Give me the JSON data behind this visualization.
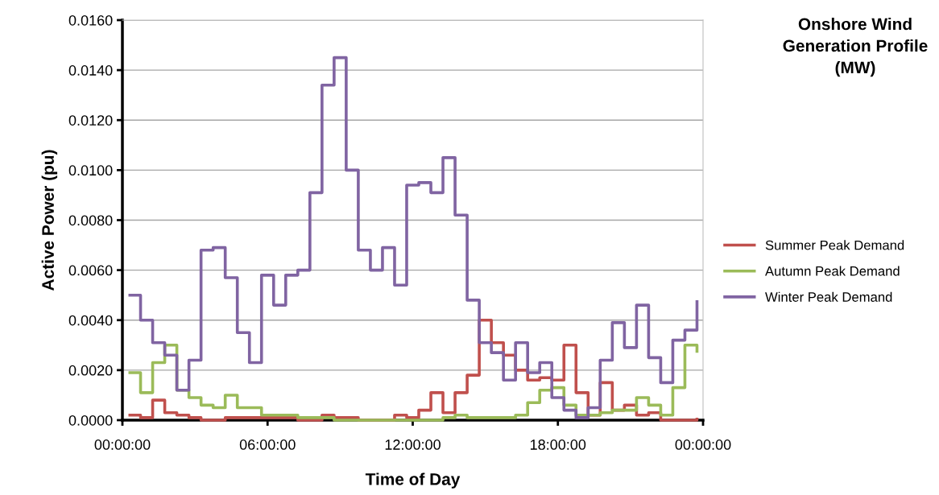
{
  "chart_data": {
    "type": "step",
    "title": "Onshore Wind Generation Profile (MW)",
    "xlabel": "Time of Day",
    "ylabel": "Active Power (pu)",
    "x": [
      "2000-01-01T00:15",
      "2000-01-01T00:45",
      "2000-01-01T01:15",
      "2000-01-01T01:45",
      "2000-01-01T02:15",
      "2000-01-01T02:45",
      "2000-01-01T03:15",
      "2000-01-01T03:45",
      "2000-01-01T04:15",
      "2000-01-01T04:45",
      "2000-01-01T05:15",
      "2000-01-01T05:45",
      "2000-01-01T06:15",
      "2000-01-01T06:45",
      "2000-01-01T07:15",
      "2000-01-01T07:45",
      "2000-01-01T08:15",
      "2000-01-01T08:45",
      "2000-01-01T09:15",
      "2000-01-01T09:45",
      "2000-01-01T10:15",
      "2000-01-01T10:45",
      "2000-01-01T11:15",
      "2000-01-01T11:45",
      "2000-01-01T12:15",
      "2000-01-01T12:45",
      "2000-01-01T13:15",
      "2000-01-01T13:45",
      "2000-01-01T14:15",
      "2000-01-01T14:45",
      "2000-01-01T15:15",
      "2000-01-01T15:45",
      "2000-01-01T16:15",
      "2000-01-01T16:45",
      "2000-01-01T17:15",
      "2000-01-01T17:45",
      "2000-01-01T18:15",
      "2000-01-01T18:45",
      "2000-01-01T19:15",
      "2000-01-01T19:45",
      "2000-01-01T20:15",
      "2000-01-01T20:45",
      "2000-01-01T21:15",
      "2000-01-01T21:45",
      "2000-01-01T22:15",
      "2000-01-01T22:45",
      "2000-01-01T23:15",
      "2000-01-01T23:45"
    ],
    "series": [
      {
        "name": "Summer Peak Demand",
        "color": "#c0504d",
        "values": [
          0.0002,
          0.0001,
          0.0008,
          0.0003,
          0.0002,
          0.0001,
          0.0,
          0.0,
          0.0001,
          0.0001,
          0.0001,
          0.0001,
          0.0001,
          0.0001,
          0.0,
          0.0,
          0.0002,
          0.0001,
          0.0001,
          0.0,
          0.0,
          0.0,
          0.0002,
          0.0001,
          0.0004,
          0.0011,
          0.0003,
          0.0011,
          0.0018,
          0.004,
          0.0031,
          0.0026,
          0.002,
          0.0016,
          0.0017,
          0.0016,
          0.003,
          0.0011,
          0.0002,
          0.0015,
          0.0004,
          0.0006,
          0.0002,
          0.0003,
          0.0,
          0.0,
          0.0,
          0.0001
        ]
      },
      {
        "name": "Autumn Peak Demand",
        "color": "#9bbb59",
        "values": [
          0.0019,
          0.0011,
          0.0023,
          0.003,
          0.0012,
          0.0009,
          0.0006,
          0.0005,
          0.001,
          0.0005,
          0.0005,
          0.0002,
          0.0002,
          0.0002,
          0.0001,
          0.0001,
          0.0001,
          0.0,
          0.0,
          0.0,
          0.0,
          0.0,
          0.0,
          0.0,
          0.0,
          0.0,
          0.0001,
          0.0002,
          0.0001,
          0.0001,
          0.0001,
          0.0001,
          0.0002,
          0.0007,
          0.0012,
          0.0013,
          0.0006,
          0.0002,
          0.0002,
          0.0003,
          0.0004,
          0.0004,
          0.0009,
          0.0006,
          0.0002,
          0.0013,
          0.003,
          0.0027
        ]
      },
      {
        "name": "Winter Peak Demand",
        "color": "#8064a2",
        "values": [
          0.005,
          0.004,
          0.0031,
          0.0026,
          0.0012,
          0.0024,
          0.0068,
          0.0069,
          0.0057,
          0.0035,
          0.0023,
          0.0058,
          0.0046,
          0.0058,
          0.006,
          0.0091,
          0.0134,
          0.0145,
          0.01,
          0.0068,
          0.006,
          0.0069,
          0.0054,
          0.0094,
          0.0095,
          0.0091,
          0.0105,
          0.0082,
          0.0048,
          0.0031,
          0.0027,
          0.0016,
          0.0031,
          0.0019,
          0.0023,
          0.0009,
          0.0004,
          0.0001,
          0.0005,
          0.0024,
          0.0039,
          0.0029,
          0.0046,
          0.0025,
          0.0015,
          0.0032,
          0.0036,
          0.0048
        ]
      }
    ],
    "xlim": [
      "2000-01-01T00:00",
      "2000-01-02T00:00"
    ],
    "xticks": [
      {
        "value": "2000-01-01T00:00",
        "label": "00:00:00"
      },
      {
        "value": "2000-01-01T06:00",
        "label": "06:00:00"
      },
      {
        "value": "2000-01-01T12:00",
        "label": "12:00:00"
      },
      {
        "value": "2000-01-01T18:00",
        "label": "18:00:00"
      },
      {
        "value": "2000-01-02T00:00",
        "label": "00:00:00"
      }
    ],
    "ylim": [
      0,
      0.016
    ],
    "yticks": [
      {
        "value": 0,
        "label": "0.0000"
      },
      {
        "value": 0.002,
        "label": "0.0020"
      },
      {
        "value": 0.004,
        "label": "0.0040"
      },
      {
        "value": 0.006,
        "label": "0.0060"
      },
      {
        "value": 0.008,
        "label": "0.0080"
      },
      {
        "value": 0.01,
        "label": "0.0100"
      },
      {
        "value": 0.012,
        "label": "0.0120"
      },
      {
        "value": 0.014,
        "label": "0.0140"
      },
      {
        "value": 0.016,
        "label": "0.0160"
      }
    ],
    "grid": "y",
    "legend": "right",
    "marker": "none",
    "line_style": "solid"
  }
}
